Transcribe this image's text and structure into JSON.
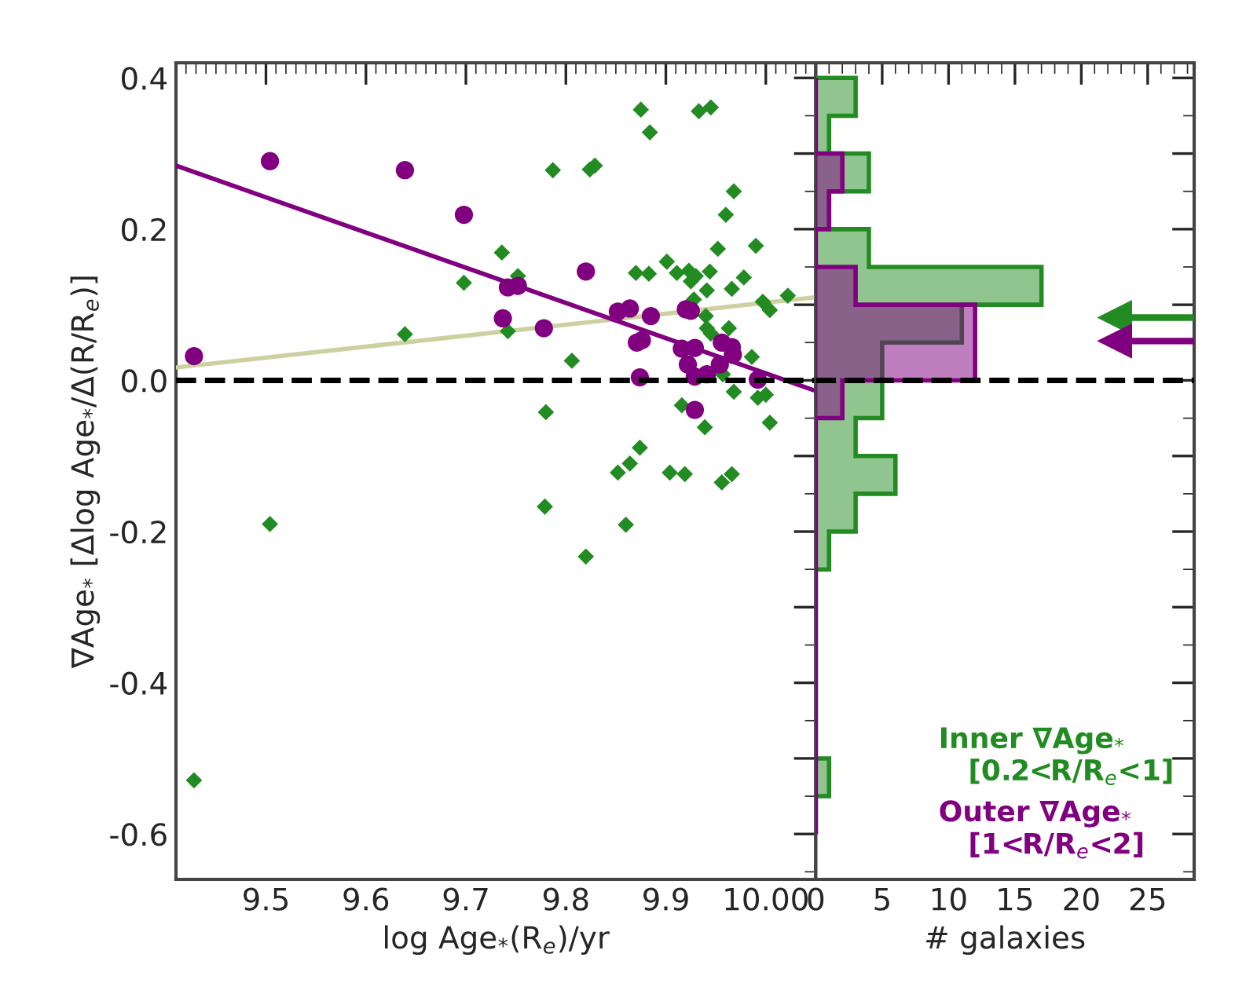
{
  "chart_data": [
    {
      "type": "scatter",
      "xlabel": "log Age$_{*}$(R$_{e}$)/yr",
      "ylabel": "∇Age$_{*}$ [Δlog Age$_{*}$/Δ(R/R$_{e}$)]",
      "xlim": [
        9.41,
        10.05
      ],
      "ylim": [
        -0.66,
        0.42
      ],
      "xticks": [
        9.5,
        9.6,
        9.7,
        9.8,
        9.9,
        {
          "value": 10.0,
          "label": "10.00"
        }
      ],
      "yticks": [
        {
          "value": -0.6,
          "label": "-0.6"
        },
        {
          "value": -0.5,
          "label": null
        },
        {
          "value": -0.4,
          "label": "-0.4"
        },
        {
          "value": -0.3,
          "label": null
        },
        {
          "value": -0.2,
          "label": "-0.2"
        },
        {
          "value": -0.1,
          "label": null
        },
        {
          "value": 0.0,
          "label": "0.0"
        },
        {
          "value": 0.1,
          "label": null
        },
        0.2,
        {
          "value": 0.3,
          "label": null
        },
        0.4
      ],
      "grid": false,
      "ref_lines": [
        {
          "axis": "y",
          "value": 0.0,
          "color": "#000000",
          "line_style": "dashed"
        }
      ],
      "series": [
        {
          "type": "line",
          "color": "#cdd0a0",
          "marker": "none",
          "line_style": "solid",
          "x": [
            9.41,
            10.05
          ],
          "values": [
            0.017,
            0.11
          ]
        },
        {
          "type": "line",
          "color": "#800080",
          "marker": "none",
          "line_style": "solid",
          "x": [
            9.41,
            10.05
          ],
          "values": [
            0.284,
            -0.014
          ]
        },
        {
          "type": "scatter",
          "color": "#228b22",
          "marker": "diamond",
          "x": [
            9.875,
            9.884,
            9.933,
            9.945,
            9.787,
            9.824,
            9.829,
            9.968,
            9.96,
            9.952,
            9.99,
            9.736,
            9.901,
            9.87,
            9.883,
            9.911,
            9.923,
            9.93,
            9.925,
            9.944,
            9.978,
            9.752,
            9.698,
            9.941,
            9.966,
            10.022,
            9.997,
            10.004,
            9.928,
            9.94,
            9.941,
            9.945,
            9.963,
            9.639,
            9.742,
            9.806,
            9.986,
            9.957,
            9.968,
            9.992,
            10.0,
            9.916,
            9.78,
            10.004,
            9.939,
            9.874,
            9.864,
            9.852,
            9.904,
            9.919,
            9.956,
            9.966,
            9.779,
            9.504,
            9.86,
            9.82,
            9.428
          ],
          "values": [
            0.358,
            0.328,
            0.356,
            0.361,
            0.278,
            0.279,
            0.284,
            0.25,
            0.219,
            0.174,
            0.178,
            0.169,
            0.157,
            0.142,
            0.141,
            0.142,
            0.145,
            0.138,
            0.131,
            0.144,
            0.136,
            0.138,
            0.129,
            0.119,
            0.121,
            0.112,
            0.104,
            0.093,
            0.107,
            0.085,
            0.069,
            0.062,
            0.069,
            0.061,
            0.065,
            0.026,
            0.031,
            0.008,
            -0.015,
            -0.023,
            -0.019,
            -0.033,
            -0.042,
            -0.056,
            -0.062,
            -0.089,
            -0.11,
            -0.122,
            -0.122,
            -0.124,
            -0.135,
            -0.124,
            -0.167,
            -0.19,
            -0.191,
            -0.233,
            -0.529
          ]
        },
        {
          "type": "scatter",
          "color": "#800080",
          "marker": "circle",
          "x": [
            9.428,
            9.504,
            9.639,
            9.698,
            9.742,
            9.752,
            9.737,
            9.778,
            9.82,
            9.852,
            9.864,
            9.871,
            9.876,
            9.874,
            9.885,
            9.92,
            9.925,
            9.916,
            9.929,
            9.922,
            9.929,
            9.941,
            9.929,
            9.956,
            9.966,
            9.967,
            9.954,
            9.992
          ],
          "values": [
            0.032,
            0.29,
            0.278,
            0.219,
            0.123,
            0.125,
            0.082,
            0.069,
            0.144,
            0.091,
            0.095,
            0.05,
            0.053,
            0.004,
            0.085,
            0.094,
            0.092,
            0.042,
            0.043,
            0.021,
            0.005,
            0.008,
            -0.039,
            0.05,
            0.044,
            0.034,
            0.021,
            0.001
          ]
        }
      ]
    },
    {
      "type": "histogram",
      "orientation": "horizontal",
      "xlabel": "# galaxies",
      "xlim": [
        0,
        28.5
      ],
      "ylim": [
        -0.66,
        0.42
      ],
      "xticks": [
        0,
        5,
        10,
        15,
        20,
        25
      ],
      "yticks": [
        -0.6,
        -0.5,
        -0.4,
        -0.3,
        -0.2,
        -0.1,
        0.0,
        0.1,
        0.2,
        0.3,
        0.4
      ],
      "tick_labels": "x",
      "grid": false,
      "legend": "bottom right",
      "ref_lines": [
        {
          "axis": "y",
          "value": 0.0,
          "color": "#000000",
          "line_style": "dashed"
        }
      ],
      "bins": [
        -0.6,
        -0.55,
        -0.5,
        -0.45,
        -0.4,
        -0.35,
        -0.3,
        -0.25,
        -0.2,
        -0.15,
        -0.1,
        -0.05,
        0.0,
        0.05,
        0.1,
        0.15,
        0.2,
        0.25,
        0.3,
        0.35,
        0.4
      ],
      "series": [
        {
          "name": "Inner ∇Age$_{*}$\n   [0.2<R/R$_{e}$<1]",
          "color": "#228b22",
          "values": [
            0,
            1,
            0,
            0,
            0,
            0,
            0,
            1,
            3,
            6,
            3,
            5,
            5,
            11,
            17,
            4,
            1,
            4,
            1,
            3
          ]
        },
        {
          "name": "Outer ∇Age$_{*}$\n   [1<R/R$_{e}$<2]",
          "color": "#800080",
          "values": [
            0,
            0,
            0,
            0,
            0,
            0,
            0,
            0,
            0,
            0,
            0,
            2,
            12,
            12,
            3,
            0,
            1,
            2,
            0,
            0
          ]
        },
        {
          "type": "scatter",
          "color": "#228b22",
          "marker": "triangle",
          "x": [
            0.083
          ],
          "values": [
            22.5
          ]
        },
        {
          "type": "scatter",
          "color": "#800080",
          "marker": "triangle",
          "x": [
            0.052
          ],
          "values": [
            22.5
          ]
        }
      ]
    }
  ]
}
